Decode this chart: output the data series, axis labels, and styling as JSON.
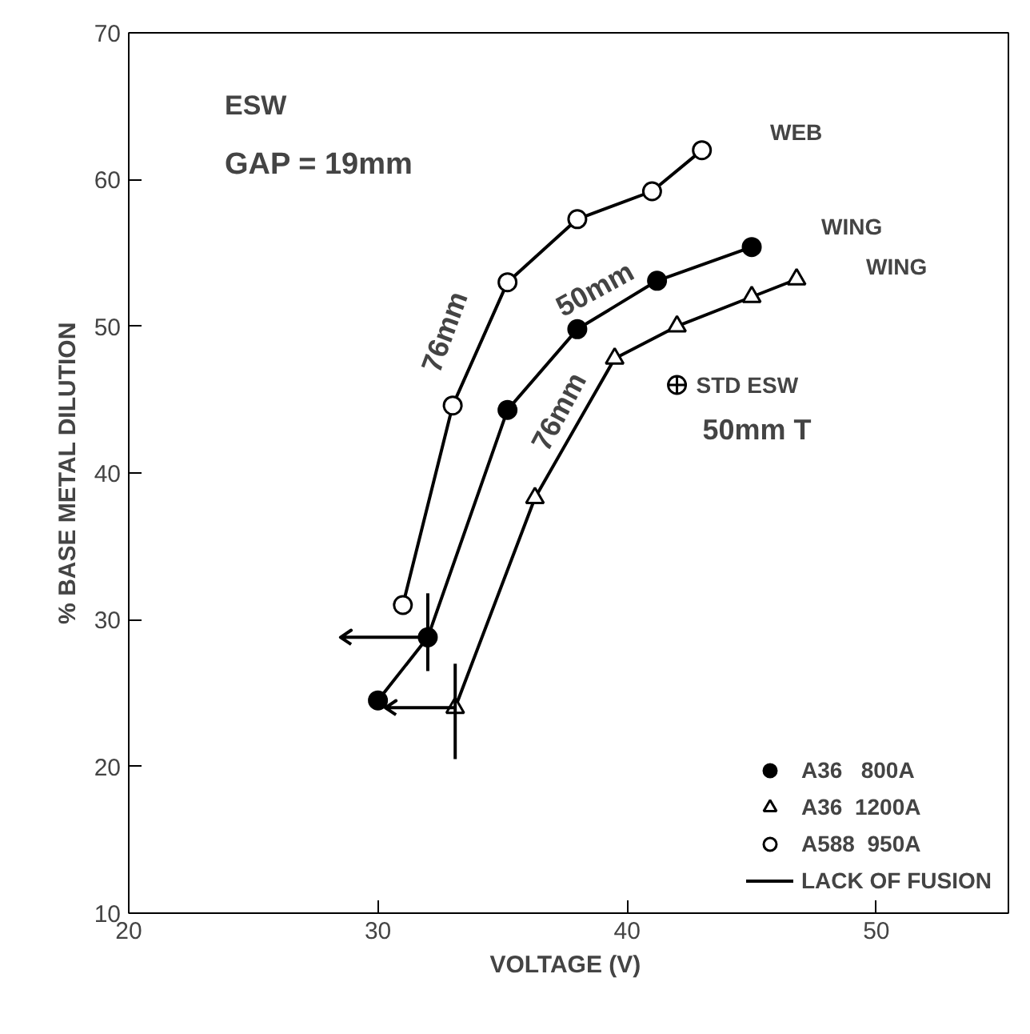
{
  "chart_data": {
    "type": "line",
    "xlabel": "VOLTAGE  (V)",
    "ylabel": "% BASE METAL DILUTION",
    "xlim": [
      20,
      55.3
    ],
    "ylim": [
      10,
      70
    ],
    "xticks": [
      20,
      30,
      40,
      50
    ],
    "yticks": [
      10,
      20,
      30,
      40,
      50,
      60,
      70
    ],
    "grid": false,
    "legend": "bottom right",
    "line_style": "solid",
    "series": [
      {
        "name": "A36   800A",
        "color": "#000000",
        "marker": "circle",
        "x": [
          30,
          32,
          35.2,
          38,
          41.2,
          45
        ],
        "values": [
          24.5,
          28.8,
          44.3,
          49.8,
          53.1,
          55.4
        ],
        "errors": [
          null,
          [
            26.5,
            31.8
          ],
          null,
          null,
          null,
          null
        ],
        "xerrors": [
          null,
          [
            28.5,
            32
          ],
          null,
          null,
          null,
          null
        ]
      },
      {
        "name": "A36  1200A",
        "color": "#000000",
        "marker": "triangle_open",
        "x": [
          33.1,
          36.3,
          39.5,
          42,
          45,
          46.8
        ],
        "values": [
          24,
          38.3,
          47.8,
          50,
          52,
          53.2
        ],
        "errors": [
          [
            20.5,
            27
          ],
          null,
          null,
          null,
          null,
          null
        ],
        "xerrors": [
          [
            30.3,
            33.1
          ],
          null,
          null,
          null,
          null,
          null
        ]
      },
      {
        "name": "A588  950A",
        "color": "#000000",
        "marker": "circle_open",
        "x": [
          31,
          33,
          35.2,
          38,
          41,
          43
        ],
        "values": [
          31,
          44.6,
          53,
          57.3,
          59.2,
          62
        ]
      },
      {
        "type": "scatter",
        "color": "#000000",
        "marker": "circle_cross",
        "x": [
          42
        ],
        "values": [
          46
        ]
      }
    ],
    "annotations": [
      "ESW",
      "GAP = 19mm",
      "LACK OF FUSION",
      "WEB",
      "WING",
      "WING",
      {
        "text": "76mm",
        "x": 33,
        "y": 44.6
      },
      {
        "text": "50mm",
        "x": 38,
        "y": 49.8
      },
      {
        "text": "76mm",
        "x": 36.3,
        "y": 38.3
      },
      {
        "text": "STD ESW",
        "x": 42,
        "y": 46
      },
      {
        "text": "50mm T",
        "x": 42,
        "y": 46
      }
    ]
  }
}
